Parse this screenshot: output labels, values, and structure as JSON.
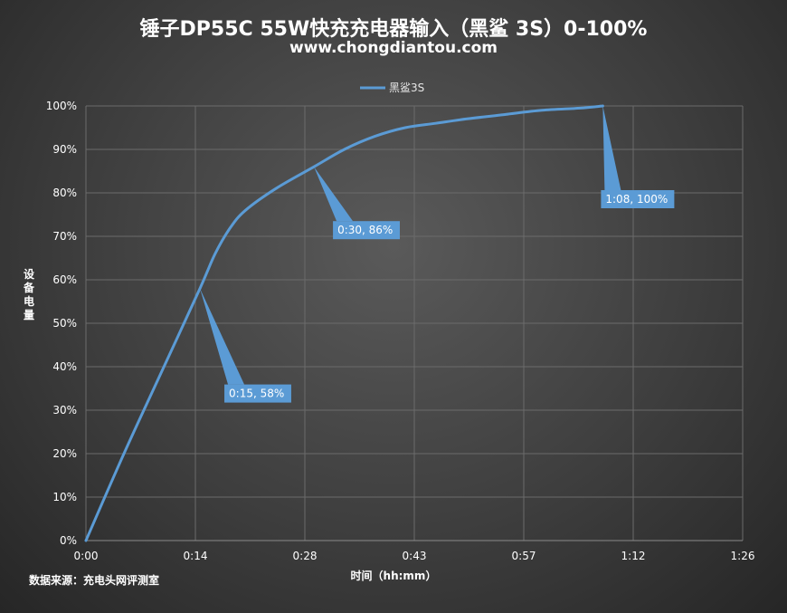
{
  "header": {
    "title": "锤子DP55C 55W快充充电器输入（黑鲨 3S）0-100%",
    "subtitle": "www.chongdiantou.com"
  },
  "footer": {
    "source": "数据来源：充电头网评测室"
  },
  "chart_data": {
    "type": "line",
    "xlabel": "时间（hh:mm）",
    "ylabel": "设备电量",
    "x_unit": "minutes",
    "xlim": [
      0,
      86
    ],
    "ylim": [
      0,
      100
    ],
    "x_ticks": [
      {
        "value": 0,
        "label": "0:00"
      },
      {
        "value": 14.4,
        "label": "0:14"
      },
      {
        "value": 28.8,
        "label": "0:28"
      },
      {
        "value": 43.2,
        "label": "0:43"
      },
      {
        "value": 57.6,
        "label": "0:57"
      },
      {
        "value": 72,
        "label": "1:12"
      },
      {
        "value": 86.4,
        "label": "1:26"
      }
    ],
    "y_ticks": [
      {
        "value": 0,
        "label": "0%"
      },
      {
        "value": 10,
        "label": "10%"
      },
      {
        "value": 20,
        "label": "20%"
      },
      {
        "value": 30,
        "label": "30%"
      },
      {
        "value": 40,
        "label": "40%"
      },
      {
        "value": 50,
        "label": "50%"
      },
      {
        "value": 60,
        "label": "60%"
      },
      {
        "value": 70,
        "label": "70%"
      },
      {
        "value": 80,
        "label": "80%"
      },
      {
        "value": 90,
        "label": "90%"
      },
      {
        "value": 100,
        "label": "100%"
      }
    ],
    "grid": true,
    "legend_position": "top",
    "line_color": "#5b9bd5",
    "callout_color": "#5b9bd5",
    "series": [
      {
        "name": "黑鲨3S",
        "x": [
          0,
          5,
          10,
          15,
          17,
          19,
          21,
          25,
          30,
          34,
          38,
          42,
          46,
          50,
          55,
          60,
          65,
          68
        ],
        "y": [
          0,
          20,
          39,
          58,
          66,
          72,
          76,
          81,
          86,
          90,
          93,
          95,
          96,
          97,
          98,
          99,
          99.5,
          100
        ]
      }
    ],
    "annotations": [
      {
        "x": 15,
        "y": 58,
        "label": "0:15, 58%"
      },
      {
        "x": 30,
        "y": 86,
        "label": "0:30, 86%"
      },
      {
        "x": 68,
        "y": 100,
        "label": "1:08, 100%"
      }
    ]
  }
}
